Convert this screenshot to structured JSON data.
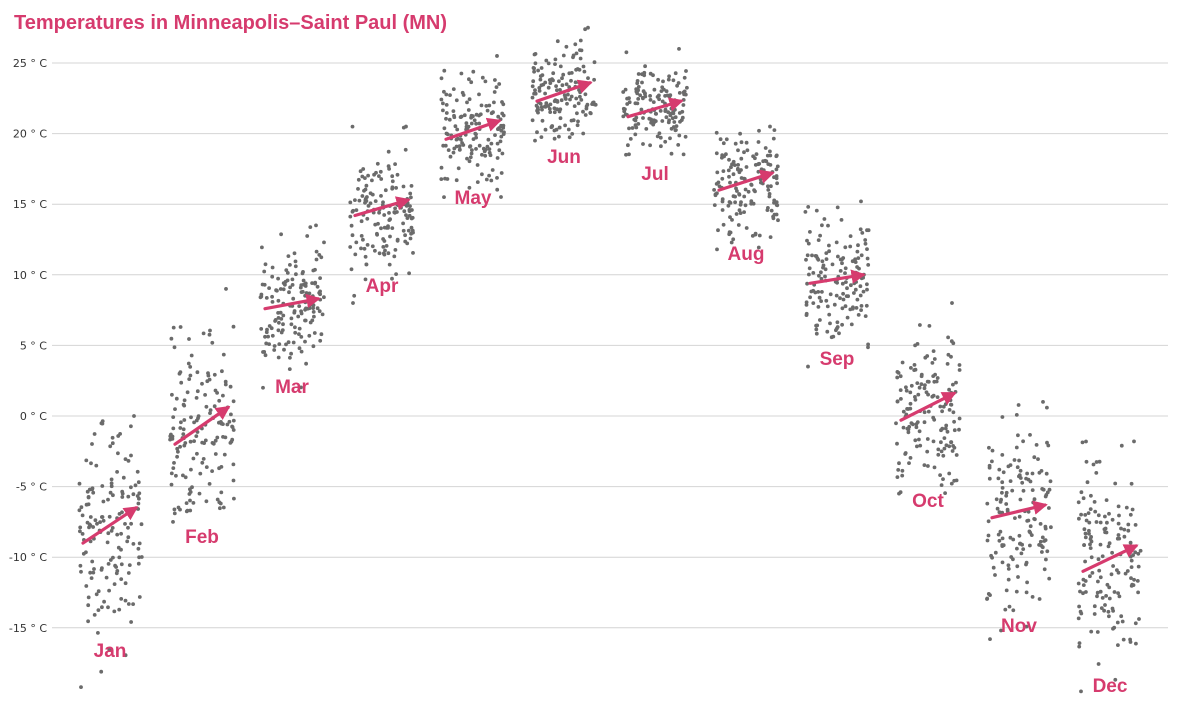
{
  "colors": {
    "accent": "#d63b6e",
    "points": "#6b6b6b",
    "grid": "#d4d4d4"
  },
  "chart_data": {
    "type": "scatter",
    "title": "Temperatures in Minneapolis–Saint Paul (MN)",
    "xlabel": "",
    "ylabel": "",
    "ylim": [
      -19.5,
      28
    ],
    "grid": true,
    "y_ticks": [
      25,
      20,
      15,
      10,
      5,
      0,
      -5,
      -10,
      -15
    ],
    "y_tick_labels": [
      "25 ° C",
      "20 ° C",
      "15 ° C",
      "10 ° C",
      "5 ° C",
      "0 ° C",
      "-5 ° C",
      "-10 ° C",
      "-15 ° C"
    ],
    "series": [
      {
        "label": "Jan",
        "min": -19.2,
        "max": 0.0,
        "center": -8.0,
        "spread": 3.8,
        "trend": [
          -9.0,
          -6.5
        ]
      },
      {
        "label": "Feb",
        "min": -7.5,
        "max": 9.0,
        "center": -1.0,
        "spread": 3.2,
        "trend": [
          -2.0,
          0.6
        ]
      },
      {
        "label": "Mar",
        "min": 2.0,
        "max": 13.5,
        "center": 8.0,
        "spread": 2.4,
        "trend": [
          7.6,
          8.3
        ]
      },
      {
        "label": "Apr",
        "min": 8.0,
        "max": 20.5,
        "center": 14.5,
        "spread": 2.3,
        "trend": [
          14.2,
          15.3
        ]
      },
      {
        "label": "May",
        "min": 15.5,
        "max": 25.5,
        "center": 20.3,
        "spread": 2.0,
        "trend": [
          19.6,
          20.9
        ]
      },
      {
        "label": "Jun",
        "min": 19.5,
        "max": 27.5,
        "center": 23.0,
        "spread": 1.6,
        "trend": [
          22.3,
          23.6
        ]
      },
      {
        "label": "Jul",
        "min": 18.5,
        "max": 26.0,
        "center": 21.8,
        "spread": 1.5,
        "trend": [
          21.2,
          22.3
        ]
      },
      {
        "label": "Aug",
        "min": 11.8,
        "max": 20.5,
        "center": 16.5,
        "spread": 2.1,
        "trend": [
          16.0,
          17.2
        ]
      },
      {
        "label": "Sep",
        "min": 3.5,
        "max": 15.2,
        "center": 9.7,
        "spread": 2.4,
        "trend": [
          9.4,
          10.0
        ]
      },
      {
        "label": "Oct",
        "min": -5.5,
        "max": 8.0,
        "center": 0.5,
        "spread": 2.9,
        "trend": [
          -0.3,
          1.6
        ]
      },
      {
        "label": "Nov",
        "min": -15.8,
        "max": 1.0,
        "center": -7.0,
        "spread": 3.4,
        "trend": [
          -7.2,
          -6.3
        ]
      },
      {
        "label": "Dec",
        "min": -19.5,
        "max": -1.8,
        "center": -10.2,
        "spread": 3.8,
        "trend": [
          -11.0,
          -9.2
        ]
      }
    ]
  }
}
